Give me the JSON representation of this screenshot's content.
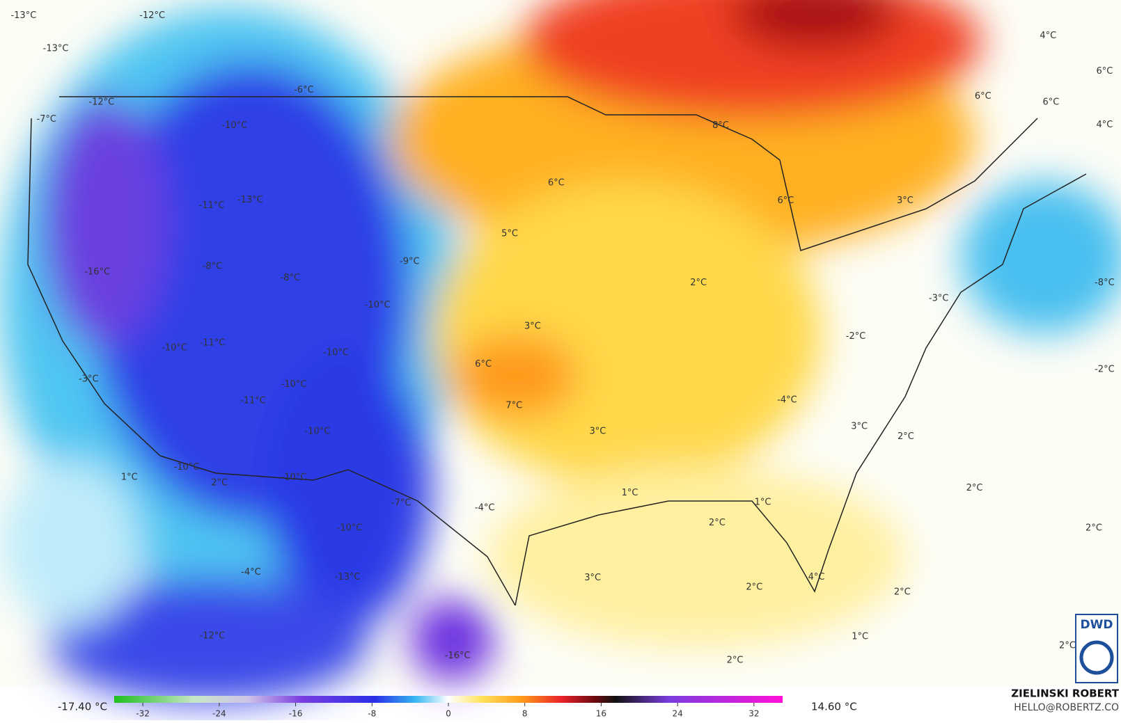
{
  "map": {
    "labels": [
      "-13°C",
      "-12°C",
      "-13°C",
      "-6°C",
      "-12°C",
      "-7°C",
      "-10°C",
      "6°C",
      "8°C",
      "4°C",
      "6°C",
      "6°C",
      "6°C",
      "4°C",
      "-11°C",
      "-13°C",
      "5°C",
      "6°C",
      "3°C",
      "-9°C",
      "-8°C",
      "-16°C",
      "-8°C",
      "2°C",
      "-8°C",
      "-10°C",
      "-3°C",
      "3°C",
      "-2°C",
      "-10°C",
      "-11°C",
      "-10°C",
      "6°C",
      "-2°C",
      "-3°C",
      "-10°C",
      "-11°C",
      "-4°C",
      "7°C",
      "3°C",
      "2°C",
      "3°C",
      "-10°C",
      "1°C",
      "-10°C",
      "-10°C",
      "2°C",
      "2°C",
      "1°C",
      "1°C",
      "-7°C",
      "-4°C",
      "2°C",
      "-10°C",
      "2°C",
      "-4°C",
      "3°C",
      "-13°C",
      "4°C",
      "2°C",
      "2°C",
      "-12°C",
      "1°C",
      "-16°C",
      "2°C",
      "2°C"
    ],
    "logo": "DWD"
  },
  "colorbar": {
    "min_label": "-17.40 °C",
    "max_label": "14.60 °C",
    "range": [
      -35,
      35
    ],
    "ticks": [
      -32,
      -24,
      -16,
      -8,
      0,
      8,
      16,
      24,
      32
    ]
  },
  "credit": {
    "name": "ZIELINSKI ROBERT",
    "contact": "HELLO@ROBERTZ.CO"
  }
}
